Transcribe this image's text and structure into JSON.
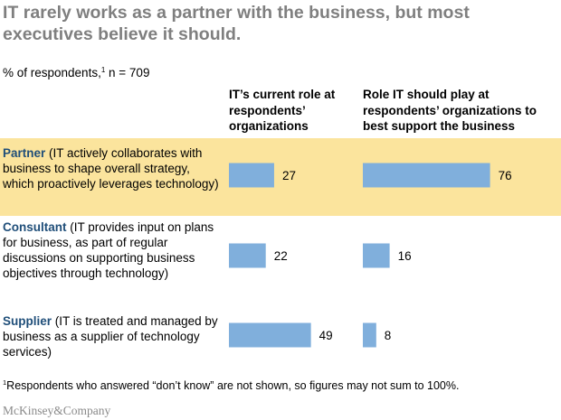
{
  "title": "IT rarely works as a partner with the business, but most executives believe it should.",
  "subtitle": {
    "text_before": "% of respondents,",
    "footnote_mark": "1",
    "text_after": " n = 709"
  },
  "footnote": {
    "mark": "1",
    "text": "Respondents who answered “don’t know” are not shown, so figures may not sum to 100%."
  },
  "source": "McKinsey&Company",
  "colors": {
    "bar": "#80afdc",
    "highlight": "#fbe49d",
    "category_label": "#1f4e79",
    "title": "#7f7f7f"
  },
  "chart_data": {
    "type": "bar",
    "orientation": "horizontal",
    "title": "IT rarely works as a partner with the business, but most executives believe it should.",
    "categories": [
      "Partner",
      "Consultant",
      "Supplier"
    ],
    "category_descriptions": [
      "(IT actively collaborates with business to shape overall strategy, which proactively leverages technology)",
      "(IT provides input on plans for business, as part of regular discussions on supporting business objectives through technology)",
      "(IT is treated and managed by business as a supplier of technology services)"
    ],
    "series": [
      {
        "name": "IT’s current role at respondents’ organizations",
        "values": [
          27,
          22,
          49
        ]
      },
      {
        "name": "Role IT should play at respondents’ organizations to best support the business",
        "values": [
          76,
          16,
          8
        ]
      }
    ],
    "xlim": [
      0,
      100
    ],
    "unit": "% of respondents",
    "grid": false,
    "highlighted_category": "Partner"
  }
}
